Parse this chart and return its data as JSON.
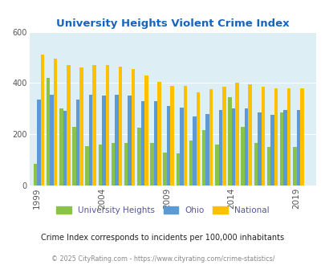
{
  "title": "University Heights Violent Crime Index",
  "subtitle": "Crime Index corresponds to incidents per 100,000 inhabitants",
  "footer": "© 2025 CityRating.com - https://www.cityrating.com/crime-statistics/",
  "years": [
    1999,
    2000,
    2001,
    2002,
    2003,
    2004,
    2005,
    2006,
    2007,
    2008,
    2009,
    2010,
    2011,
    2012,
    2013,
    2014,
    2015,
    2016,
    2017,
    2018,
    2019
  ],
  "university_heights": [
    85,
    420,
    300,
    230,
    155,
    160,
    165,
    165,
    225,
    165,
    130,
    125,
    175,
    215,
    160,
    345,
    230,
    165,
    150,
    285,
    150
  ],
  "ohio": [
    335,
    355,
    290,
    335,
    355,
    350,
    355,
    350,
    330,
    330,
    310,
    305,
    270,
    280,
    295,
    300,
    300,
    285,
    275,
    295,
    295
  ],
  "national": [
    510,
    495,
    470,
    460,
    470,
    470,
    465,
    455,
    430,
    405,
    390,
    390,
    365,
    375,
    385,
    400,
    395,
    385,
    380,
    380,
    378
  ],
  "uh_color": "#8bc34a",
  "ohio_color": "#5b9bd5",
  "national_color": "#ffc000",
  "bg_color": "#ddeef5",
  "title_color": "#1565c0",
  "ylim": [
    0,
    600
  ],
  "yticks": [
    0,
    200,
    400,
    600
  ],
  "xtick_labels": [
    "1999",
    "2004",
    "2009",
    "2014",
    "2019"
  ],
  "xtick_positions": [
    1999,
    2004,
    2009,
    2014,
    2019
  ]
}
